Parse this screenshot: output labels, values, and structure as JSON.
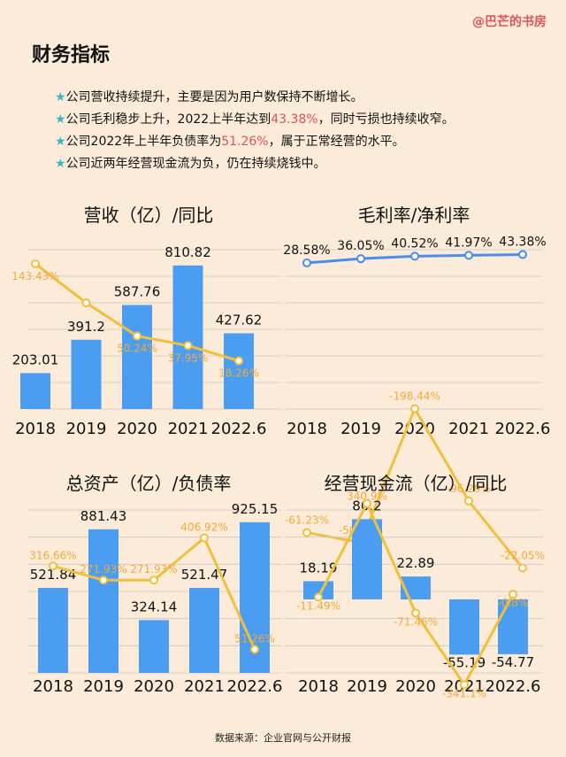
{
  "brand": "@巴芒的书房",
  "heading": "财务指标",
  "bullets": [
    {
      "star": "★",
      "pre": "公司营收持续提升，主要是因为用户数保持不断增长。",
      "hl": "",
      "post": ""
    },
    {
      "star": "★",
      "pre": "公司毛利稳步上升，2022上半年达到",
      "hl": "43.38%",
      "post": "，同时亏损也持续收窄。"
    },
    {
      "star": "★",
      "pre": "公司2022年上半年负债率为",
      "hl": "51.26%",
      "post": "，属于正常经营的水平。"
    },
    {
      "star": "★",
      "pre": "公司近两年经营现金流为负，仍在持续烧钱中。",
      "hl": "",
      "post": ""
    }
  ],
  "footer": "数据来源：企业官网与公开财报",
  "colors": {
    "bar": "#4A9DF0",
    "line": "#F0C03C",
    "blue_line": "#4A8EEA",
    "label_orange": "#F2A93B",
    "highlight": "#E0515A",
    "star": "#35B8C8",
    "grid": "#C8C8C8",
    "background": "#FCEBD8"
  },
  "chart_data": [
    {
      "type": "bar",
      "title": "营收（亿）/同比",
      "categories": [
        "2018",
        "2019",
        "2020",
        "2021",
        "2022.6"
      ],
      "series": [
        {
          "kind": "bar",
          "values": [
            203.01,
            391.2,
            587.76,
            810.82,
            427.62
          ],
          "labels": [
            "203.01",
            "391.2",
            "587.76",
            "810.82",
            "427.62"
          ]
        },
        {
          "kind": "line",
          "values": [
            143.43,
            93.0,
            50.24,
            37.95,
            18.26
          ],
          "labels": [
            "143.43%",
            "",
            "50.24%",
            "37.95%",
            "18.26%"
          ]
        }
      ],
      "grid": true
    },
    {
      "type": "line",
      "title": "毛利率/净利率",
      "categories": [
        "2018",
        "2019",
        "2020",
        "2021",
        "2022.6"
      ],
      "series": [
        {
          "kind": "line",
          "color": "blue",
          "values": [
            28.58,
            36.05,
            40.52,
            41.97,
            43.38
          ],
          "labels": [
            "28.58%",
            "36.05%",
            "40.52%",
            "41.97%",
            "43.38%"
          ]
        },
        {
          "kind": "line",
          "color": "yellow",
          "values": [
            -61.23,
            -50.23,
            -198.44,
            -96.29,
            -22.05
          ],
          "labels": [
            "-61.23%",
            "-50.23%",
            "-198.44%",
            "-96.29%",
            "-22.05%"
          ]
        }
      ],
      "grid": true
    },
    {
      "type": "bar",
      "title": "总资产（亿）/负债率",
      "categories": [
        "2018",
        "2019",
        "2020",
        "2021",
        "2022.6"
      ],
      "series": [
        {
          "kind": "bar",
          "values": [
            521.84,
            881.43,
            324.14,
            521.47,
            925.15
          ],
          "labels": [
            "521.84",
            "881.43",
            "324.14",
            "521.47",
            "925.15"
          ]
        },
        {
          "kind": "line",
          "values": [
            316.66,
            271.93,
            271.93,
            406.92,
            51.26
          ],
          "labels": [
            "316.66%",
            "271.93%",
            "271.93%",
            "406.92%",
            "51.26%"
          ]
        }
      ],
      "grid": true
    },
    {
      "type": "bar",
      "title": "经营现金流（亿）/同比",
      "categories": [
        "2018",
        "2019",
        "2020",
        "2021",
        "2022.6"
      ],
      "series": [
        {
          "kind": "bar",
          "values": [
            18.19,
            80.2,
            22.89,
            -55.19,
            -54.77
          ],
          "labels": [
            "18.19",
            "80.2",
            "22.89",
            "-55.19",
            "-54.77"
          ]
        },
        {
          "kind": "line",
          "values": [
            -11.49,
            340.9,
            -71.46,
            -341.1,
            -0.8
          ],
          "labels": [
            "-11.49%",
            "340.9%",
            "-71.46%",
            "-341.1%",
            "-0.8%"
          ]
        }
      ],
      "grid": true
    }
  ]
}
